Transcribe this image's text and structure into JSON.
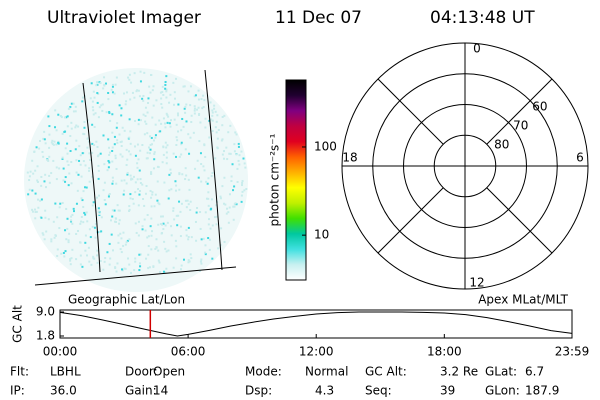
{
  "header": {
    "title": "Ultraviolet Imager",
    "date": "11 Dec 07",
    "time": "04:13:48 UT"
  },
  "colorbar": {
    "label": "photon cm⁻²s⁻¹",
    "scale": "log",
    "clim": [
      3.1,
      575
    ],
    "ticks": [
      10,
      100
    ],
    "colors": [
      "#ffffff",
      "#c8f0f0",
      "#40e0e0",
      "#00c8a0",
      "#40e000",
      "#c0f000",
      "#ffff00",
      "#ffb000",
      "#ff6000",
      "#e00020",
      "#c00040",
      "#800080",
      "#200030",
      "#000000"
    ]
  },
  "polar": {
    "latlim": [
      50,
      90
    ],
    "lat_ticks": [
      80,
      70,
      60
    ],
    "mlt_ticks": [
      12,
      18,
      6,
      0
    ]
  },
  "alt_plot": {
    "left_label": "Geographic Lat/Lon",
    "right_label": "Apex MLat/MLT",
    "ylabel": "GC Alt",
    "ylim": [
      1.2,
      9.6
    ],
    "yticks": [
      {
        "value": 9.0,
        "label": "9.0"
      },
      {
        "value": 1.8,
        "label": "1.8"
      }
    ],
    "xlim": [
      0,
      23.98
    ],
    "xticks": [
      {
        "value": 0,
        "label": "00:00"
      },
      {
        "value": 6,
        "label": "06:00"
      },
      {
        "value": 12,
        "label": "12:00"
      },
      {
        "value": 18,
        "label": "18:00"
      },
      {
        "value": 23.98,
        "label": "23:59"
      }
    ],
    "x": [
      0,
      1,
      2,
      3,
      4,
      5,
      5.5,
      6,
      7,
      8,
      9,
      10,
      11,
      12,
      13,
      14,
      15,
      16,
      17,
      18,
      19,
      20,
      21,
      22,
      23,
      23.98
    ],
    "y": [
      8.9,
      7.9,
      6.6,
      5.2,
      3.8,
      2.4,
      1.8,
      2.3,
      3.5,
      4.8,
      5.9,
      6.9,
      7.7,
      8.4,
      8.8,
      9.0,
      9.0,
      9.0,
      8.9,
      8.7,
      8.2,
      7.3,
      6.1,
      4.8,
      3.4,
      2.6
    ],
    "marker": 4.23,
    "marker_color": "#d00000"
  },
  "info": [
    [
      "Flt:",
      "LBHL"
    ],
    [
      "Door:",
      "Open"
    ],
    [
      "Mode:",
      "Normal"
    ],
    [
      "GC Alt:",
      "3.2 Re"
    ],
    [
      "GLat:",
      "6.7"
    ],
    [
      "IP:",
      "36.0"
    ],
    [
      "Gain:",
      "14"
    ],
    [
      "Dsp:",
      "4.3"
    ],
    [
      "Seq:",
      "39"
    ],
    [
      "GLon:",
      "187.9"
    ]
  ]
}
